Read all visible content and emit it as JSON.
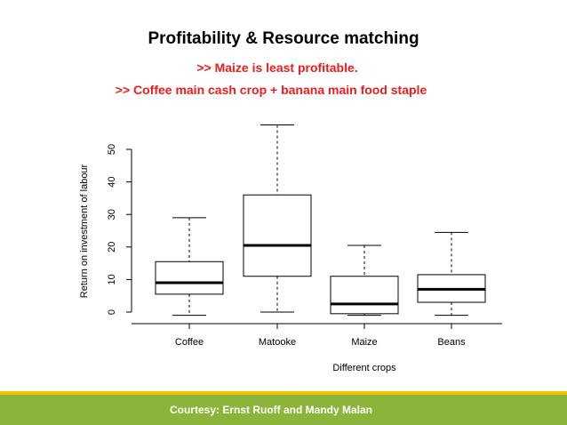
{
  "slide": {
    "title": "Profitability & Resource matching",
    "subtitle_1": ">> Maize is least profitable.",
    "subtitle_2": ">> Coffee main cash crop + banana main food staple",
    "footer": "Courtesy: Ernst Ruoff and Mandy Malan"
  },
  "colors": {
    "accent_red": "#ee1c1c",
    "footer_green": "#8cb43a",
    "footer_yellow": "#f2c200"
  },
  "chart_data": {
    "type": "box",
    "xlabel": "Different crops",
    "ylabel": "Return on investment of labour",
    "categories": [
      "Coffee",
      "Matooke",
      "Maize",
      "Beans"
    ],
    "yticks": [
      0,
      10,
      20,
      30,
      40,
      50
    ],
    "ylim": [
      -3,
      59
    ],
    "grid": false,
    "boxes": [
      {
        "name": "Coffee",
        "min": -1,
        "q1": 5.5,
        "median": 9,
        "q3": 15.5,
        "max": 29
      },
      {
        "name": "Matooke",
        "min": 0,
        "q1": 11,
        "median": 20.5,
        "q3": 36,
        "max": 57.5
      },
      {
        "name": "Maize",
        "min": -1,
        "q1": -0.5,
        "median": 2.5,
        "q3": 11,
        "max": 20.5
      },
      {
        "name": "Beans",
        "min": -1,
        "q1": 3,
        "median": 7,
        "q3": 11.5,
        "max": 24.5
      }
    ]
  }
}
